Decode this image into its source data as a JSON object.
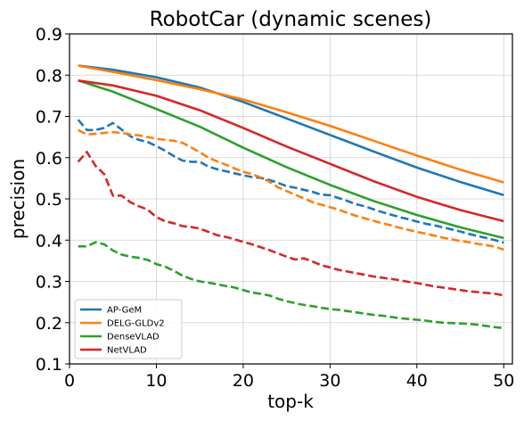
{
  "chart_data": {
    "type": "line",
    "title": "RobotCar (dynamic scenes)",
    "xlabel": "top-k",
    "ylabel": "precision",
    "xlim": [
      0,
      51
    ],
    "ylim": [
      0.1,
      0.9
    ],
    "xticks": [
      0,
      10,
      20,
      30,
      40,
      50
    ],
    "yticks": [
      0.1,
      0.2,
      0.3,
      0.4,
      0.5,
      0.6,
      0.7,
      0.8,
      0.9
    ],
    "grid": true,
    "legend": "lower-left",
    "colors": {
      "AP-GeM": "#1f77b4",
      "DELG-GLDv2": "#ff7f0e",
      "DenseVLAD": "#2ca02c",
      "NetVLAD": "#d62728"
    },
    "series": [
      {
        "name": "AP-GeM",
        "style": "solid",
        "x": [
          1,
          5,
          10,
          15,
          20,
          25,
          30,
          35,
          40,
          45,
          50
        ],
        "y": [
          0.823,
          0.813,
          0.795,
          0.77,
          0.735,
          0.695,
          0.655,
          0.615,
          0.576,
          0.541,
          0.509
        ]
      },
      {
        "name": "DELG-GLDv2",
        "style": "solid",
        "x": [
          1,
          5,
          10,
          15,
          20,
          25,
          30,
          35,
          40,
          45,
          50
        ],
        "y": [
          0.823,
          0.808,
          0.788,
          0.766,
          0.741,
          0.71,
          0.677,
          0.641,
          0.605,
          0.571,
          0.54
        ]
      },
      {
        "name": "DenseVLAD",
        "style": "solid",
        "x": [
          1,
          5,
          10,
          15,
          20,
          25,
          30,
          35,
          40,
          45,
          50
        ],
        "y": [
          0.787,
          0.76,
          0.718,
          0.675,
          0.624,
          0.577,
          0.534,
          0.495,
          0.461,
          0.431,
          0.405
        ]
      },
      {
        "name": "NetVLAD",
        "style": "solid",
        "x": [
          1,
          5,
          10,
          15,
          20,
          25,
          30,
          35,
          40,
          45,
          50
        ],
        "y": [
          0.787,
          0.775,
          0.75,
          0.715,
          0.672,
          0.627,
          0.585,
          0.543,
          0.505,
          0.473,
          0.446
        ]
      },
      {
        "name": "AP-GeM",
        "style": "dashed",
        "x": [
          1,
          2,
          3,
          4,
          5,
          6,
          7,
          8,
          9,
          10,
          11,
          12,
          13,
          14,
          15,
          16,
          17,
          18,
          19,
          20,
          21,
          22,
          23,
          24,
          25,
          26,
          27,
          28,
          29,
          30,
          31,
          32,
          33,
          34,
          35,
          36,
          37,
          38,
          39,
          40,
          41,
          42,
          43,
          44,
          45,
          46,
          47,
          48,
          49,
          50
        ],
        "y": [
          0.692,
          0.667,
          0.667,
          0.672,
          0.684,
          0.668,
          0.652,
          0.643,
          0.638,
          0.628,
          0.617,
          0.604,
          0.593,
          0.59,
          0.59,
          0.578,
          0.572,
          0.567,
          0.562,
          0.557,
          0.553,
          0.551,
          0.546,
          0.539,
          0.531,
          0.527,
          0.522,
          0.517,
          0.51,
          0.509,
          0.502,
          0.495,
          0.487,
          0.482,
          0.475,
          0.468,
          0.462,
          0.456,
          0.451,
          0.445,
          0.44,
          0.436,
          0.431,
          0.426,
          0.421,
          0.415,
          0.41,
          0.405,
          0.4,
          0.394
        ]
      },
      {
        "name": "DELG-GLDv2",
        "style": "dashed",
        "x": [
          1,
          2,
          3,
          4,
          5,
          6,
          7,
          8,
          9,
          10,
          11,
          12,
          13,
          14,
          15,
          16,
          17,
          18,
          19,
          20,
          21,
          22,
          23,
          24,
          25,
          26,
          27,
          28,
          29,
          30,
          31,
          32,
          33,
          34,
          35,
          36,
          37,
          38,
          39,
          40,
          41,
          42,
          43,
          44,
          45,
          46,
          47,
          48,
          49,
          50
        ],
        "y": [
          0.667,
          0.656,
          0.658,
          0.66,
          0.662,
          0.66,
          0.656,
          0.654,
          0.65,
          0.646,
          0.643,
          0.641,
          0.636,
          0.625,
          0.613,
          0.6,
          0.591,
          0.583,
          0.574,
          0.566,
          0.56,
          0.552,
          0.542,
          0.528,
          0.519,
          0.51,
          0.501,
          0.492,
          0.486,
          0.48,
          0.474,
          0.466,
          0.459,
          0.453,
          0.447,
          0.441,
          0.436,
          0.43,
          0.425,
          0.42,
          0.416,
          0.411,
          0.406,
          0.402,
          0.398,
          0.395,
          0.391,
          0.388,
          0.384,
          0.377
        ]
      },
      {
        "name": "DenseVLAD",
        "style": "dashed",
        "x": [
          1,
          2,
          3,
          4,
          5,
          6,
          7,
          8,
          9,
          10,
          11,
          12,
          13,
          14,
          15,
          16,
          17,
          18,
          19,
          20,
          21,
          22,
          23,
          24,
          25,
          26,
          27,
          28,
          29,
          30,
          31,
          32,
          33,
          34,
          35,
          36,
          37,
          38,
          39,
          40,
          41,
          42,
          43,
          44,
          45,
          46,
          47,
          48,
          49,
          50
        ],
        "y": [
          0.385,
          0.385,
          0.395,
          0.39,
          0.375,
          0.365,
          0.36,
          0.357,
          0.352,
          0.342,
          0.336,
          0.326,
          0.314,
          0.306,
          0.3,
          0.297,
          0.293,
          0.289,
          0.285,
          0.279,
          0.273,
          0.27,
          0.266,
          0.258,
          0.252,
          0.247,
          0.243,
          0.24,
          0.236,
          0.233,
          0.231,
          0.228,
          0.225,
          0.222,
          0.219,
          0.217,
          0.214,
          0.211,
          0.209,
          0.207,
          0.205,
          0.202,
          0.2,
          0.199,
          0.198,
          0.197,
          0.195,
          0.192,
          0.189,
          0.187
        ]
      },
      {
        "name": "NetVLAD",
        "style": "dashed",
        "x": [
          1,
          2,
          3,
          4,
          5,
          6,
          7,
          8,
          9,
          10,
          11,
          12,
          13,
          14,
          15,
          16,
          17,
          18,
          19,
          20,
          21,
          22,
          23,
          24,
          25,
          26,
          27,
          28,
          29,
          30,
          31,
          32,
          33,
          34,
          35,
          36,
          37,
          38,
          39,
          40,
          41,
          42,
          43,
          44,
          45,
          46,
          47,
          48,
          49,
          50
        ],
        "y": [
          0.59,
          0.614,
          0.58,
          0.56,
          0.508,
          0.508,
          0.492,
          0.482,
          0.474,
          0.456,
          0.446,
          0.441,
          0.434,
          0.432,
          0.428,
          0.42,
          0.412,
          0.408,
          0.402,
          0.396,
          0.39,
          0.383,
          0.376,
          0.368,
          0.36,
          0.353,
          0.356,
          0.348,
          0.339,
          0.334,
          0.328,
          0.324,
          0.32,
          0.316,
          0.312,
          0.309,
          0.306,
          0.303,
          0.299,
          0.296,
          0.292,
          0.288,
          0.285,
          0.282,
          0.279,
          0.276,
          0.274,
          0.272,
          0.27,
          0.266
        ]
      }
    ]
  }
}
